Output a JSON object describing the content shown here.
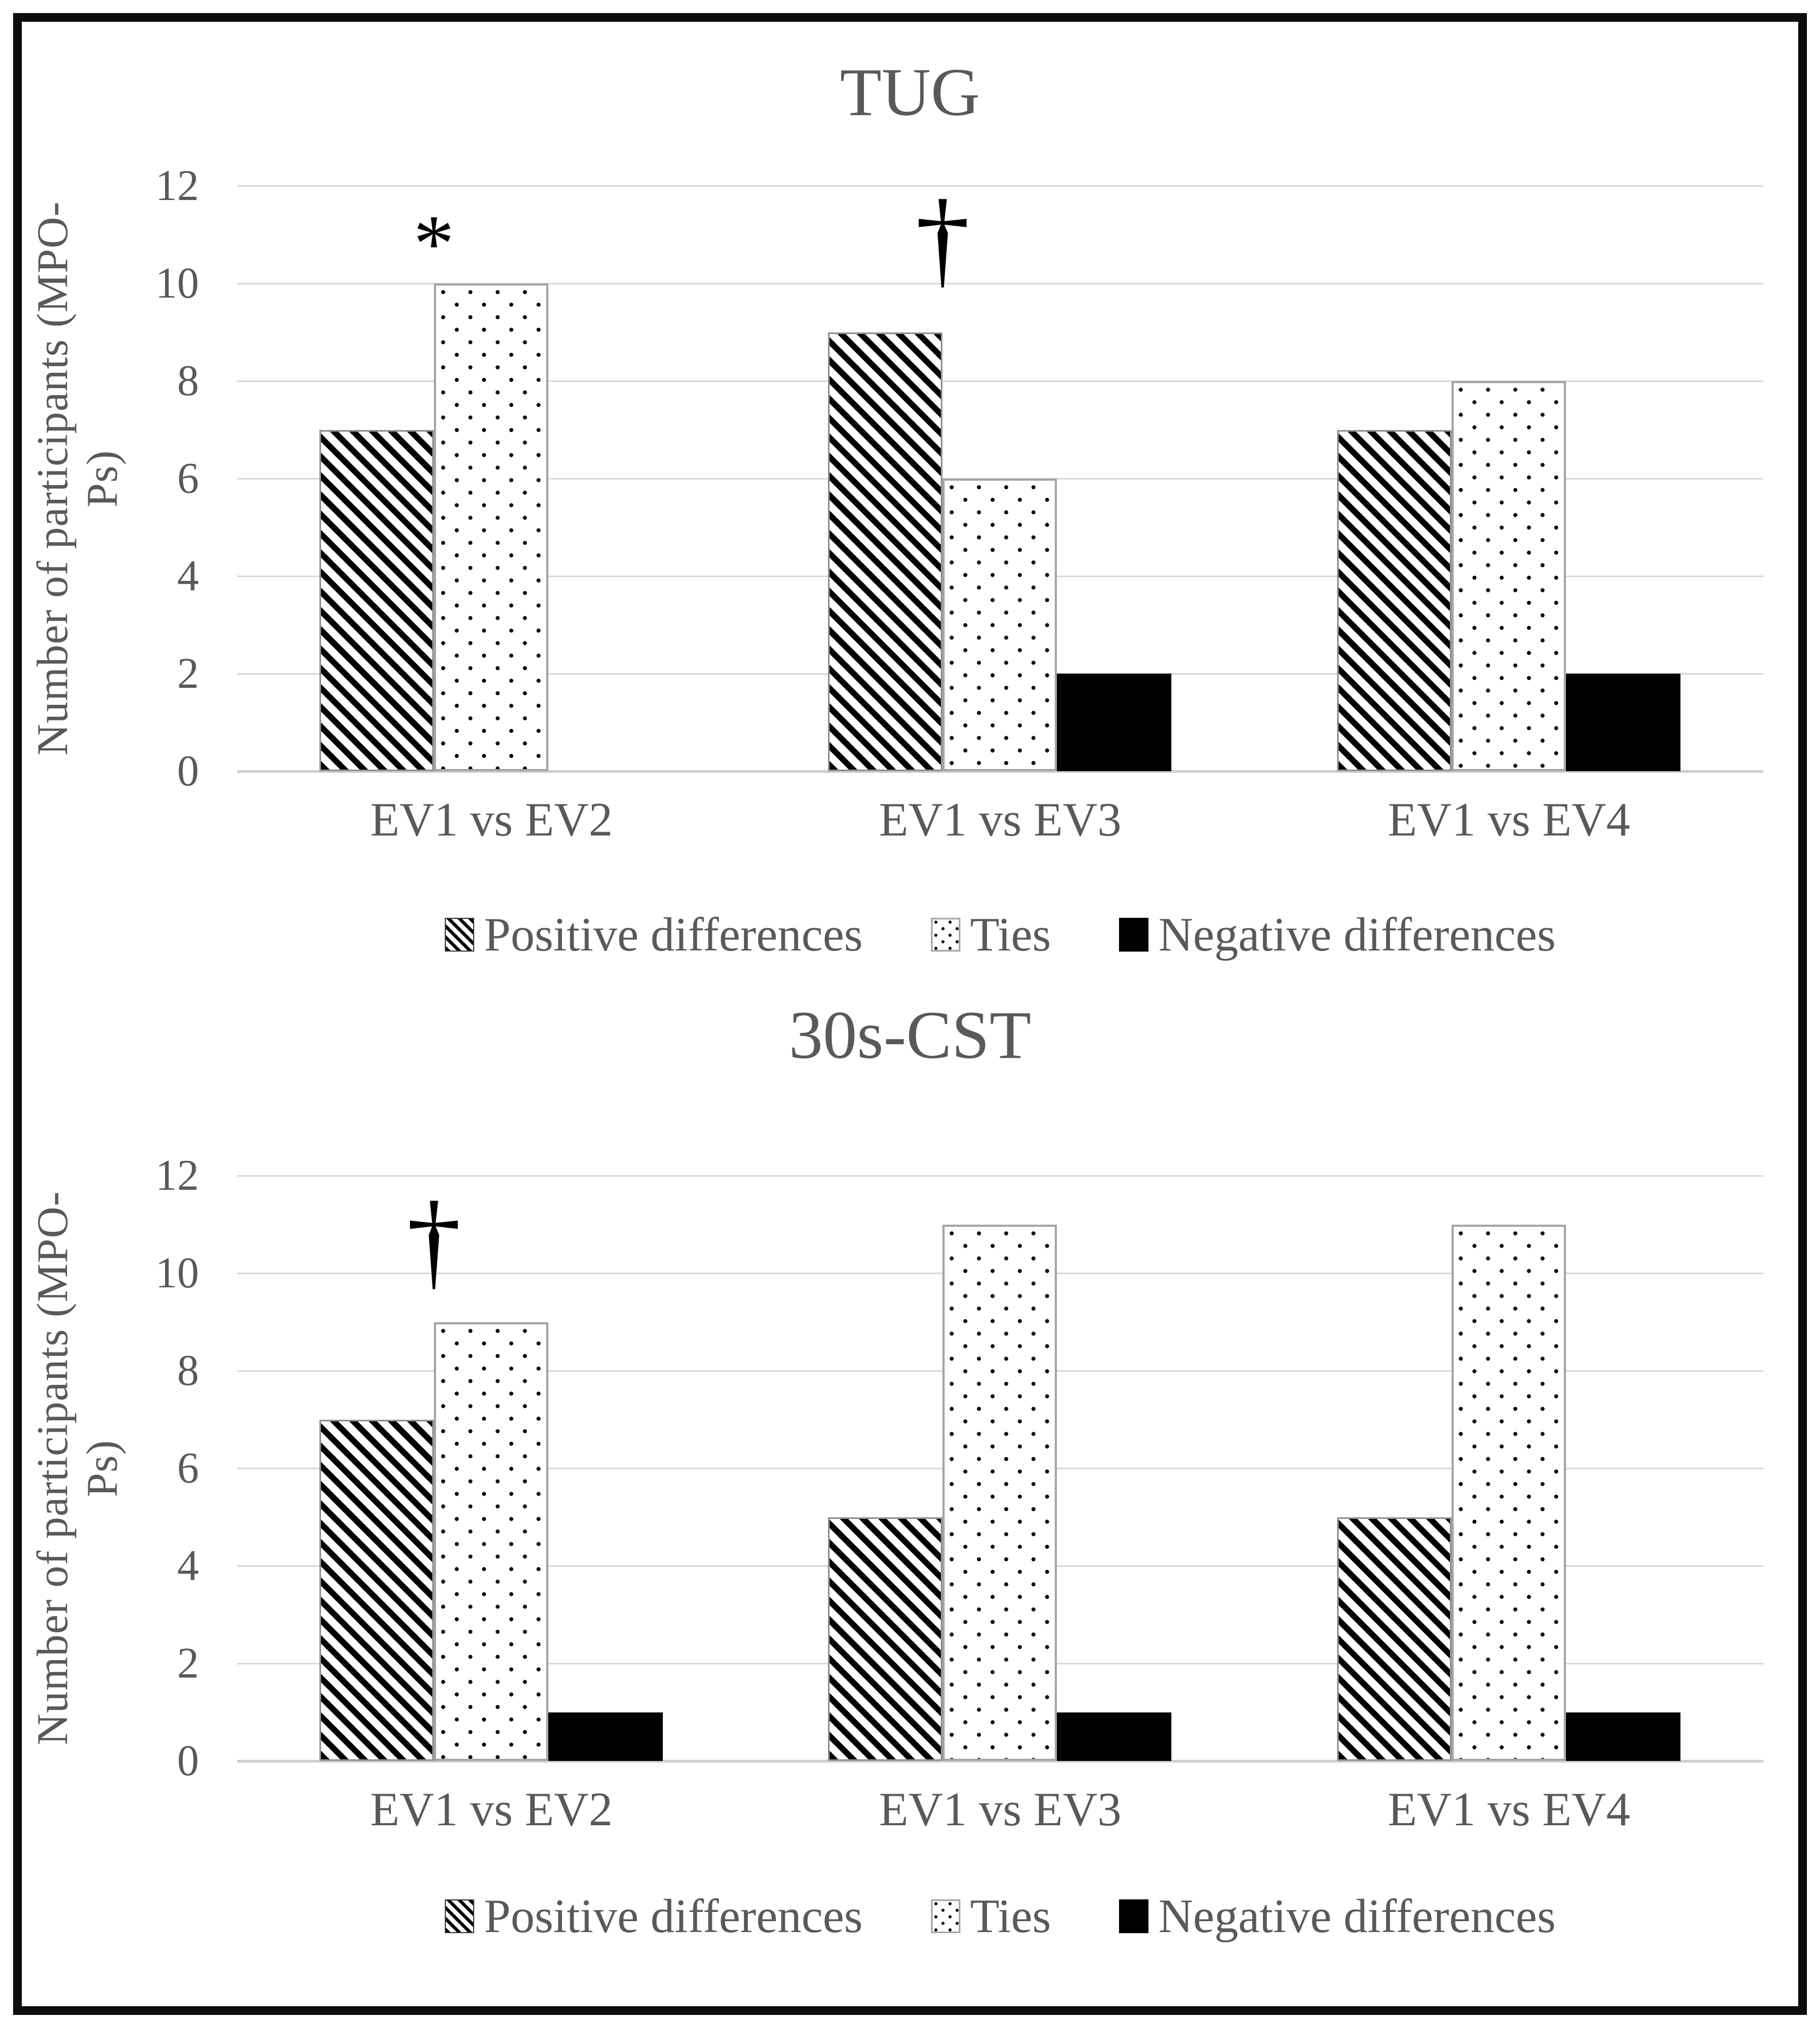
{
  "figure": {
    "background": "#ffffff",
    "border_color": "#0d0d0d",
    "text_color": "#595959",
    "gridline_color": "#d9d9d9",
    "tie_border_color": "#a6a6a6",
    "pattern_ink": "#000000"
  },
  "chart_data": [
    {
      "type": "bar",
      "title": "TUG",
      "ylabel": "Number of participants (MPO-Ps)",
      "xlabel": "",
      "categories": [
        "EV1 vs EV2",
        "EV1 vs EV3",
        "EV1 vs EV4"
      ],
      "series": [
        {
          "name": "Positive differences",
          "pattern": "diagonal-stripes",
          "values": [
            7,
            9,
            7
          ]
        },
        {
          "name": "Ties",
          "pattern": "dotted",
          "values": [
            10,
            6,
            8
          ]
        },
        {
          "name": "Negative differences",
          "pattern": "solid-black",
          "values": [
            0,
            2,
            2
          ]
        }
      ],
      "annotations": [
        {
          "symbol": "*",
          "category_index": 0,
          "y": 11.15
        },
        {
          "symbol": "†",
          "category_index": 1,
          "y": 11.05
        }
      ],
      "ylim": [
        0,
        12
      ],
      "yticks": [
        0,
        2,
        4,
        6,
        8,
        10,
        12
      ],
      "grid": true,
      "legend_position": "bottom"
    },
    {
      "type": "bar",
      "title": "30s-CST",
      "ylabel": "Number of participants (MPO-Ps)",
      "xlabel": "",
      "categories": [
        "EV1 vs EV2",
        "EV1 vs EV3",
        "EV1 vs EV4"
      ],
      "series": [
        {
          "name": "Positive differences",
          "pattern": "diagonal-stripes",
          "values": [
            7,
            5,
            5
          ]
        },
        {
          "name": "Ties",
          "pattern": "dotted",
          "values": [
            9,
            11,
            11
          ]
        },
        {
          "name": "Negative differences",
          "pattern": "solid-black",
          "values": [
            1,
            1,
            1
          ]
        }
      ],
      "annotations": [
        {
          "symbol": "†",
          "category_index": 0,
          "y": 10.8
        }
      ],
      "ylim": [
        0,
        12
      ],
      "yticks": [
        0,
        2,
        4,
        6,
        8,
        10,
        12
      ],
      "grid": true,
      "legend_position": "bottom"
    }
  ]
}
